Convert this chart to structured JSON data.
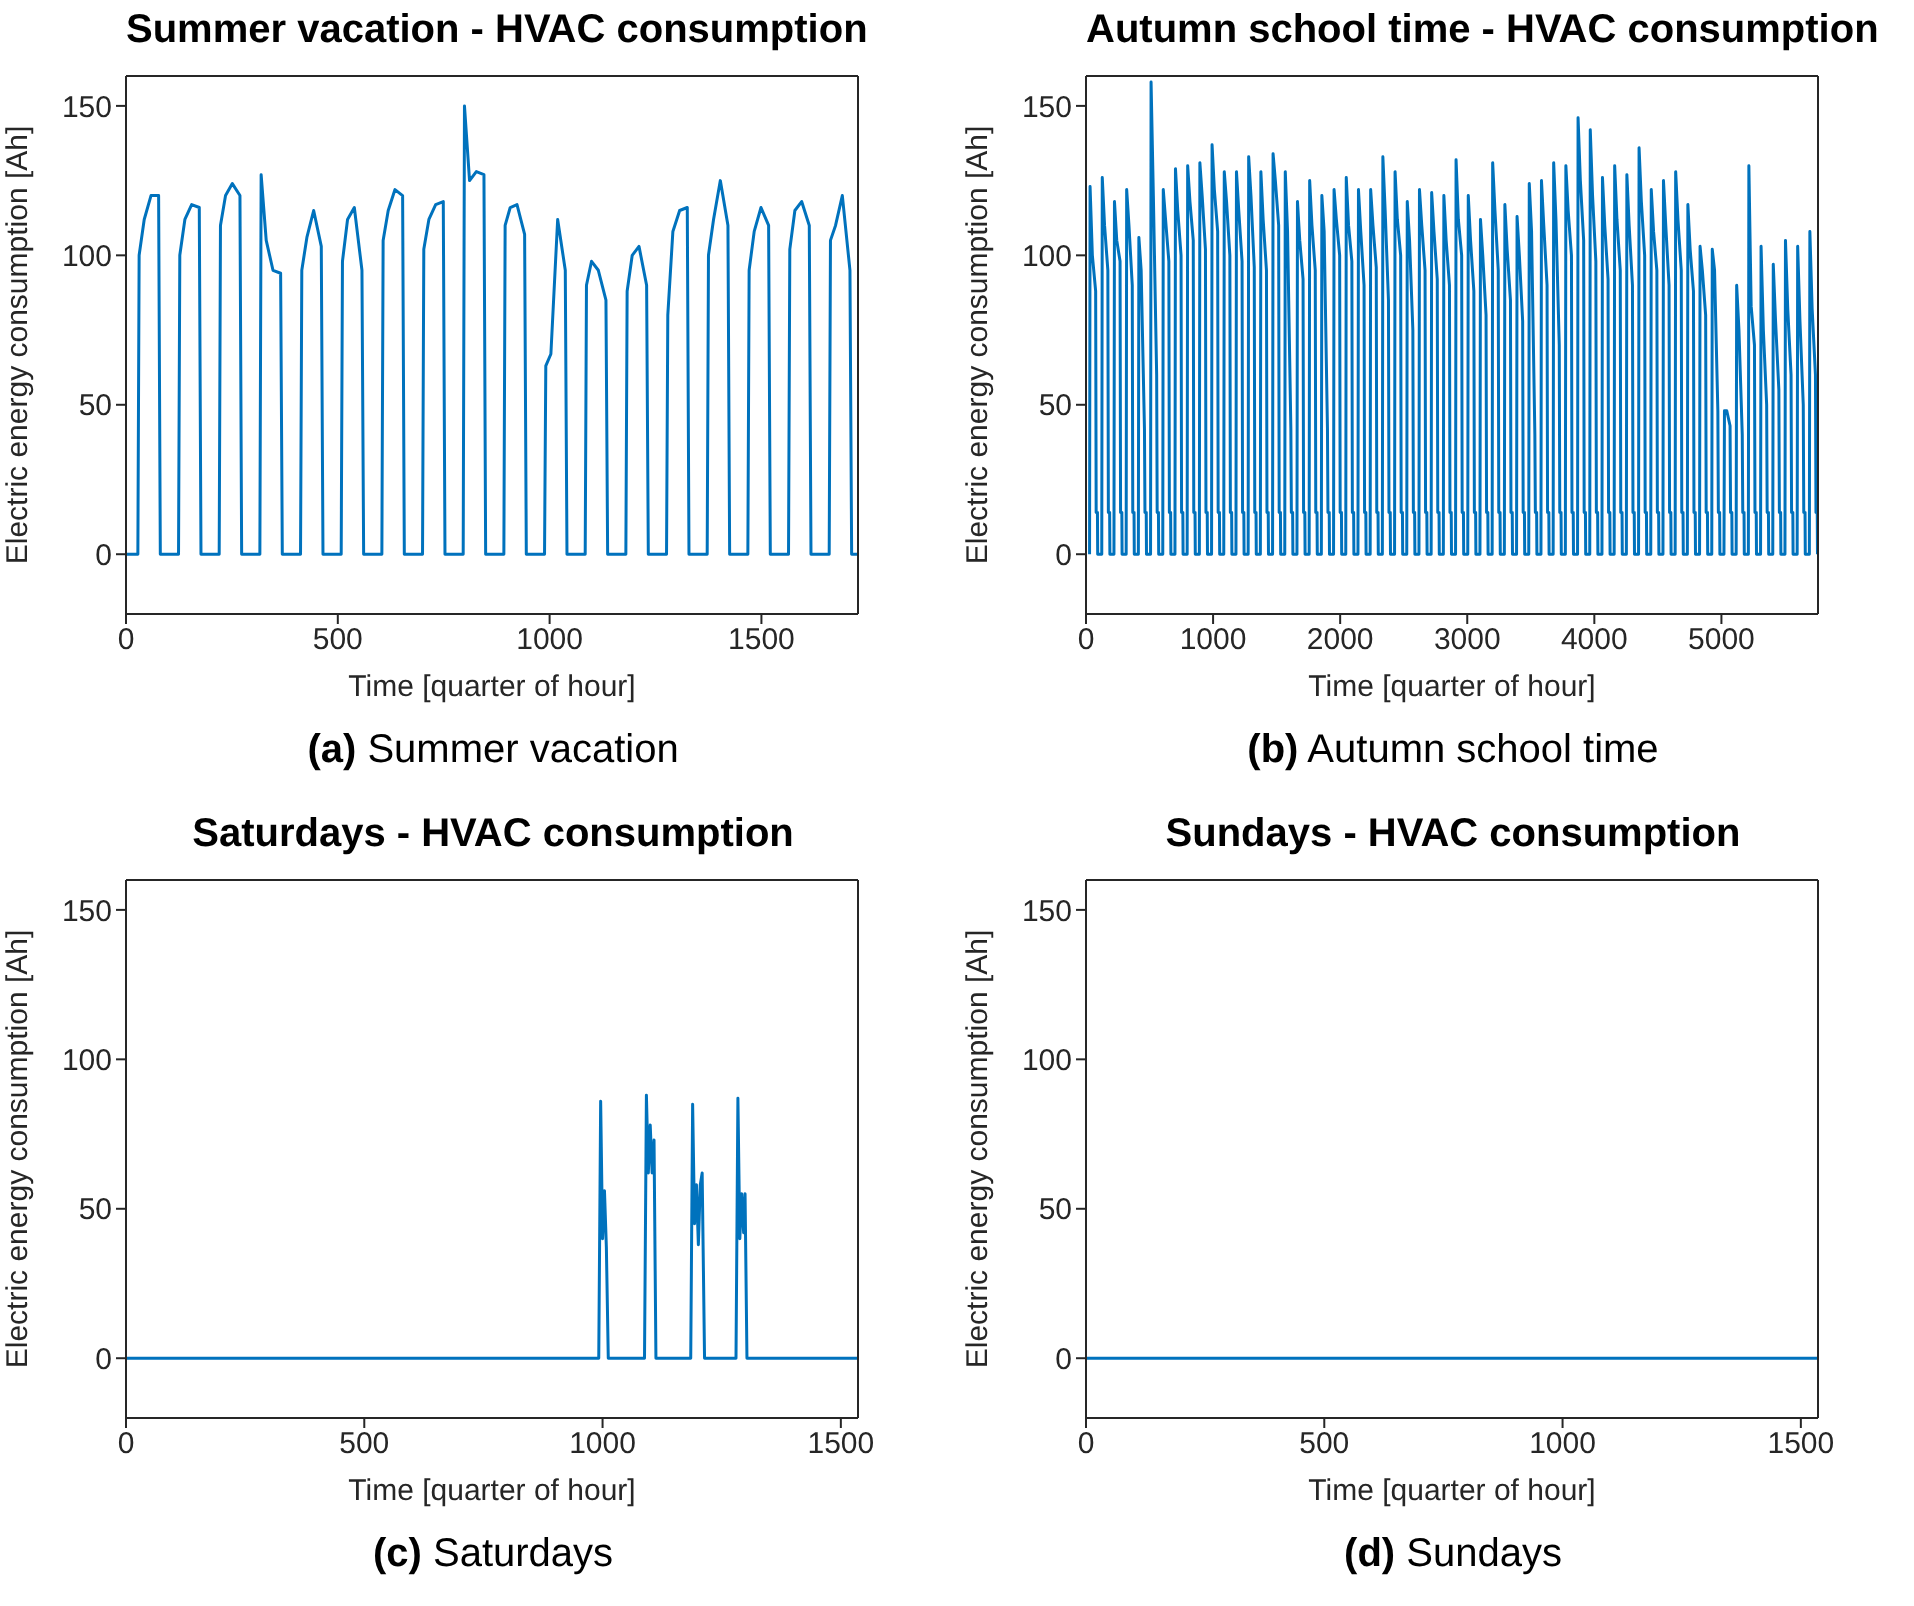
{
  "chart_data": [
    {
      "type": "line",
      "title": "Summer vacation - HVAC consumption",
      "xlabel": "Time [quarter of hour]",
      "ylabel": "Electric energy consumption [Ah]",
      "annotations": [
        "(a) Summer vacation"
      ],
      "xlim": [
        0,
        1728
      ],
      "xticks": [
        0,
        500,
        1000,
        1500
      ],
      "ylim": [
        -20,
        160
      ],
      "yticks": [
        0,
        50,
        100,
        150
      ],
      "x": [
        0,
        28,
        31,
        43,
        59,
        77,
        81,
        124,
        127,
        139,
        155,
        173,
        177,
        220,
        223,
        235,
        251,
        269,
        273,
        316,
        319,
        331,
        347,
        365,
        369,
        412,
        415,
        427,
        443,
        461,
        465,
        508,
        511,
        523,
        539,
        557,
        561,
        604,
        607,
        619,
        635,
        653,
        657,
        700,
        703,
        715,
        731,
        749,
        753,
        796,
        799,
        811,
        827,
        845,
        849,
        892,
        895,
        907,
        923,
        941,
        945,
        988,
        991,
        1003,
        1019,
        1037,
        1041,
        1084,
        1087,
        1099,
        1115,
        1133,
        1137,
        1180,
        1183,
        1195,
        1211,
        1229,
        1233,
        1276,
        1279,
        1291,
        1307,
        1325,
        1329,
        1372,
        1375,
        1387,
        1403,
        1421,
        1425,
        1468,
        1471,
        1483,
        1499,
        1517,
        1521,
        1564,
        1567,
        1579,
        1595,
        1613,
        1617,
        1660,
        1663,
        1675,
        1691,
        1709,
        1713,
        1728
      ],
      "series": [
        {
          "color": "#0072bd",
          "values": [
            0,
            0,
            100,
            112,
            120,
            120,
            0,
            0,
            100,
            112,
            117,
            116,
            0,
            0,
            110,
            120,
            124,
            120,
            0,
            0,
            127,
            105,
            95,
            94,
            0,
            0,
            95,
            106,
            115,
            103,
            0,
            0,
            98,
            112,
            116,
            95,
            0,
            0,
            105,
            115,
            122,
            120,
            0,
            0,
            102,
            112,
            117,
            118,
            0,
            0,
            150,
            125,
            128,
            127,
            0,
            0,
            110,
            116,
            117,
            107,
            0,
            0,
            63,
            67,
            112,
            95,
            0,
            0,
            90,
            98,
            95,
            85,
            0,
            0,
            88,
            100,
            103,
            90,
            0,
            0,
            80,
            108,
            115,
            116,
            0,
            0,
            100,
            112,
            125,
            110,
            0,
            0,
            95,
            108,
            116,
            110,
            0,
            0,
            102,
            115,
            118,
            110,
            0,
            0,
            105,
            110,
            120,
            95,
            0,
            0
          ]
        }
      ]
    },
    {
      "type": "line",
      "title": "Autumn school time - HVAC consumption",
      "xlabel": "Time [quarter of hour]",
      "ylabel": "Electric energy consumption [Ah]",
      "annotations": [
        "(b) Autumn school time"
      ],
      "xlim": [
        0,
        5760
      ],
      "xticks": [
        0,
        1000,
        2000,
        3000,
        4000,
        5000
      ],
      "ylim": [
        -20,
        160
      ],
      "yticks": [
        0,
        50,
        100,
        150
      ],
      "x": [
        28,
        32,
        50,
        76,
        80,
        90,
        92,
        124,
        128,
        146,
        172,
        176,
        186,
        188,
        220,
        224,
        242,
        268,
        272,
        282,
        284,
        316,
        320,
        338,
        364,
        368,
        378,
        380,
        412,
        416,
        434,
        460,
        464,
        474,
        476,
        508,
        512,
        530,
        556,
        560,
        570,
        572,
        604,
        608,
        626,
        652,
        656,
        666,
        668,
        700,
        704,
        722,
        748,
        752,
        762,
        764,
        796,
        800,
        818,
        844,
        848,
        858,
        860,
        892,
        896,
        914,
        940,
        944,
        954,
        956,
        988,
        992,
        1010,
        1036,
        1040,
        1050,
        1052,
        1084,
        1088,
        1106,
        1132,
        1136,
        1146,
        1148,
        1180,
        1184,
        1202,
        1228,
        1232,
        1242,
        1244,
        1276,
        1280,
        1298,
        1324,
        1328,
        1338,
        1340,
        1372,
        1376,
        1394,
        1420,
        1424,
        1434,
        1436,
        1468,
        1472,
        1490,
        1516,
        1520,
        1530,
        1532,
        1564,
        1568,
        1586,
        1612,
        1616,
        1626,
        1628,
        1660,
        1664,
        1682,
        1708,
        1712,
        1722,
        1724,
        1756,
        1760,
        1778,
        1804,
        1808,
        1818,
        1820,
        1852,
        1856,
        1874,
        1900,
        1904,
        1914,
        1916,
        1948,
        1952,
        1970,
        1996,
        2000,
        2010,
        2012,
        2044,
        2048,
        2066,
        2092,
        2096,
        2106,
        2108,
        2140,
        2144,
        2162,
        2188,
        2192,
        2202,
        2204,
        2236,
        2240,
        2258,
        2284,
        2288,
        2298,
        2300,
        2332,
        2336,
        2354,
        2380,
        2384,
        2394,
        2396,
        2428,
        2432,
        2450,
        2476,
        2480,
        2490,
        2492,
        2524,
        2528,
        2546,
        2572,
        2576,
        2586,
        2588,
        2620,
        2624,
        2642,
        2668,
        2672,
        2682,
        2684,
        2716,
        2720,
        2738,
        2764,
        2768,
        2778,
        2780,
        2812,
        2816,
        2834,
        2860,
        2864,
        2874,
        2876,
        2908,
        2912,
        2930,
        2956,
        2960,
        2970,
        2972,
        3004,
        3008,
        3026,
        3052,
        3056,
        3066,
        3068,
        3100,
        3104,
        3122,
        3148,
        3152,
        3162,
        3164,
        3196,
        3200,
        3218,
        3244,
        3248,
        3258,
        3260,
        3292,
        3296,
        3314,
        3340,
        3344,
        3354,
        3356,
        3388,
        3392,
        3410,
        3436,
        3440,
        3450,
        3452,
        3484,
        3488,
        3506,
        3532,
        3536,
        3546,
        3548,
        3580,
        3584,
        3602,
        3628,
        3632,
        3642,
        3644,
        3676,
        3680,
        3698,
        3724,
        3728,
        3738,
        3740,
        3772,
        3776,
        3794,
        3820,
        3824,
        3834,
        3836,
        3868,
        3872,
        3890,
        3916,
        3920,
        3930,
        3932,
        3964,
        3968,
        3986,
        4012,
        4016,
        4026,
        4028,
        4060,
        4064,
        4082,
        4108,
        4112,
        4122,
        4124,
        4156,
        4160,
        4178,
        4204,
        4208,
        4218,
        4220,
        4252,
        4256,
        4274,
        4300,
        4304,
        4314,
        4316,
        4348,
        4352,
        4370,
        4396,
        4400,
        4410,
        4412,
        4444,
        4448,
        4466,
        4492,
        4496,
        4506,
        4508,
        4540,
        4544,
        4562,
        4588,
        4592,
        4602,
        4604,
        4636,
        4640,
        4658,
        4684,
        4688,
        4698,
        4700,
        4732,
        4736,
        4754,
        4780,
        4784,
        4794,
        4796,
        4828,
        4832,
        4850,
        4876,
        4880,
        4890,
        4892,
        4924,
        4928,
        4946,
        4972,
        4976,
        4986,
        4988,
        5020,
        5024,
        5042,
        5068,
        5072,
        5082,
        5084,
        5116,
        5120,
        5138,
        5164,
        5168,
        5178,
        5180,
        5212,
        5216,
        5234,
        5260,
        5264,
        5274,
        5276,
        5308,
        5312,
        5330,
        5356,
        5360,
        5370,
        5372,
        5404,
        5408,
        5426,
        5452,
        5456,
        5466,
        5468,
        5500,
        5504,
        5522,
        5548,
        5552,
        5562,
        5564,
        5596,
        5600,
        5618,
        5644,
        5648,
        5658,
        5660,
        5692,
        5696,
        5714,
        5740,
        5744,
        5754,
        5756
      ],
      "series": [
        {
          "color": "#0072bd",
          "values": [
            0,
            123,
            100,
            88,
            14,
            14,
            0,
            0,
            126,
            110,
            95,
            14,
            14,
            0,
            0,
            118,
            105,
            98,
            14,
            14,
            0,
            0,
            122,
            110,
            90,
            14,
            14,
            0,
            0,
            106,
            95,
            42,
            14,
            14,
            0,
            0,
            158,
            120,
            60,
            14,
            14,
            0,
            0,
            122,
            112,
            98,
            14,
            14,
            0,
            0,
            129,
            115,
            100,
            14,
            14,
            0,
            0,
            130,
            118,
            105,
            14,
            14,
            0,
            0,
            131,
            120,
            102,
            14,
            14,
            0,
            0,
            137,
            122,
            108,
            14,
            14,
            0,
            0,
            128,
            118,
            100,
            14,
            14,
            0,
            0,
            128,
            115,
            98,
            14,
            14,
            0,
            0,
            133,
            120,
            96,
            14,
            14,
            0,
            0,
            128,
            112,
            95,
            14,
            14,
            0,
            0,
            134,
            125,
            110,
            14,
            14,
            0,
            0,
            128,
            108,
            42,
            14,
            14,
            0,
            0,
            118,
            105,
            92,
            14,
            14,
            0,
            0,
            125,
            110,
            95,
            14,
            14,
            0,
            0,
            120,
            108,
            42,
            14,
            14,
            0,
            0,
            122,
            112,
            100,
            14,
            14,
            0,
            0,
            126,
            110,
            98,
            14,
            14,
            0,
            0,
            122,
            108,
            90,
            14,
            14,
            0,
            0,
            122,
            110,
            96,
            14,
            14,
            0,
            0,
            133,
            115,
            85,
            14,
            14,
            0,
            0,
            128,
            112,
            100,
            14,
            14,
            0,
            0,
            118,
            105,
            75,
            14,
            14,
            0,
            0,
            122,
            110,
            95,
            14,
            14,
            0,
            0,
            121,
            108,
            92,
            14,
            14,
            0,
            0,
            120,
            105,
            90,
            14,
            14,
            0,
            0,
            132,
            112,
            100,
            14,
            14,
            0,
            0,
            120,
            105,
            88,
            14,
            14,
            0,
            0,
            112,
            100,
            80,
            14,
            14,
            0,
            0,
            131,
            115,
            95,
            14,
            14,
            0,
            0,
            117,
            102,
            85,
            14,
            14,
            0,
            0,
            113,
            100,
            78,
            14,
            14,
            0,
            0,
            124,
            108,
            40,
            14,
            14,
            0,
            0,
            125,
            110,
            90,
            14,
            14,
            0,
            0,
            131,
            112,
            70,
            14,
            14,
            0,
            0,
            130,
            115,
            100,
            14,
            14,
            0,
            0,
            146,
            125,
            105,
            14,
            14,
            0,
            0,
            142,
            120,
            98,
            14,
            14,
            0,
            0,
            126,
            110,
            92,
            14,
            14,
            0,
            0,
            130,
            112,
            95,
            14,
            14,
            0,
            0,
            127,
            110,
            90,
            14,
            14,
            0,
            0,
            136,
            118,
            100,
            14,
            14,
            0,
            0,
            122,
            108,
            95,
            14,
            14,
            0,
            0,
            125,
            110,
            90,
            14,
            14,
            0,
            0,
            128,
            112,
            95,
            14,
            14,
            0,
            0,
            117,
            102,
            88,
            14,
            14,
            0,
            0,
            103,
            95,
            80,
            14,
            14,
            0,
            0,
            102,
            95,
            48,
            14,
            14,
            0,
            0,
            48,
            48,
            43,
            14,
            14,
            0,
            0,
            90,
            75,
            40,
            14,
            14,
            0,
            0,
            130,
            83,
            70,
            14,
            14,
            0,
            0,
            103,
            75,
            50,
            14,
            14,
            0,
            0,
            97,
            78,
            55,
            14,
            14,
            0,
            0,
            105,
            82,
            60,
            14,
            14,
            0,
            0,
            103,
            78,
            50,
            14,
            14,
            0,
            0,
            108,
            82,
            60,
            14,
            14,
            0
          ]
        }
      ]
    },
    {
      "type": "line",
      "title": "Saturdays - HVAC consumption",
      "xlabel": "Time [quarter of hour]",
      "ylabel": "Electric energy consumption [Ah]",
      "annotations": [
        "(c) Saturdays"
      ],
      "xlim": [
        0,
        1536
      ],
      "xticks": [
        0,
        500,
        1000,
        1500
      ],
      "ylim": [
        -20,
        160
      ],
      "yticks": [
        0,
        50,
        100,
        150
      ],
      "x": [
        0,
        992,
        996,
        1000,
        1004,
        1008,
        1012,
        1088,
        1092,
        1096,
        1100,
        1104,
        1108,
        1112,
        1185,
        1189,
        1193,
        1197,
        1201,
        1205,
        1209,
        1214,
        1280,
        1284,
        1288,
        1292,
        1296,
        1299,
        1303,
        1536
      ],
      "series": [
        {
          "color": "#0072bd",
          "values": [
            0,
            0,
            86,
            40,
            56,
            37,
            0,
            0,
            88,
            62,
            78,
            62,
            73,
            0,
            0,
            85,
            45,
            58,
            38,
            58,
            62,
            0,
            0,
            87,
            40,
            55,
            42,
            55,
            0,
            0
          ]
        }
      ]
    },
    {
      "type": "line",
      "title": "Sundays - HVAC consumption",
      "xlabel": "Time [quarter of hour]",
      "ylabel": "Electric energy consumption [Ah]",
      "annotations": [
        "(d) Sundays"
      ],
      "xlim": [
        0,
        1536
      ],
      "xticks": [
        0,
        500,
        1000,
        1500
      ],
      "ylim": [
        -20,
        160
      ],
      "yticks": [
        0,
        50,
        100,
        150
      ],
      "x": [
        0,
        384,
        768,
        1152,
        1536
      ],
      "series": [
        {
          "color": "#0072bd",
          "values": [
            0,
            0,
            0,
            0,
            0
          ]
        }
      ]
    }
  ]
}
